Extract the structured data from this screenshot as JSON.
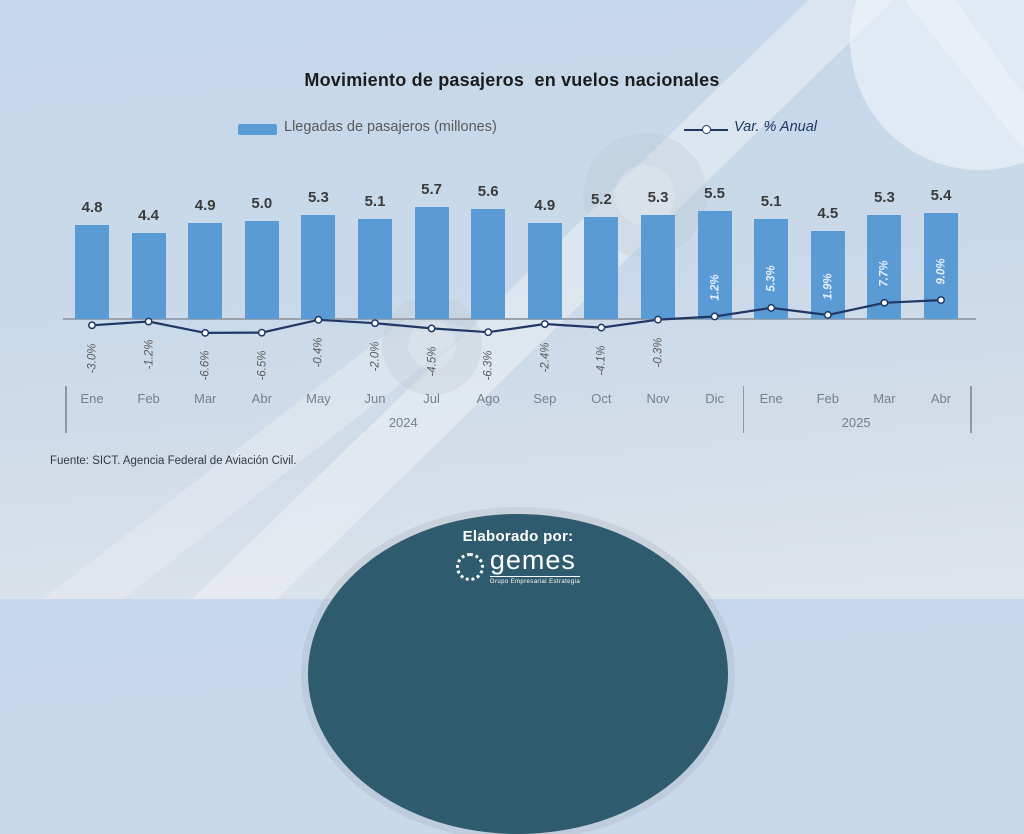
{
  "title": "Movimiento de pasajeros  en vuelos nacionales",
  "legend": {
    "bars_label": "Llegadas de pasajeros (millones)",
    "line_label": "Var. % Anual"
  },
  "source": "Fuente: SICT. Agencia Federal de Aviación Civil.",
  "footer": {
    "elaborado": "Elaborado por:",
    "logo_text": "gemes",
    "logo_tagline": "Grupo Empresarial Estrategia"
  },
  "colors": {
    "bar": "#5b9bd5",
    "line": "#1f3864",
    "marker_fill": "#ffffff",
    "axis": "#9aa3ad",
    "footer_ellipse": "#2e5b6d"
  },
  "chart_data": {
    "type": "bar",
    "subtype": "bar-with-line-overlay",
    "categories": [
      "Ene",
      "Feb",
      "Mar",
      "Abr",
      "May",
      "Jun",
      "Jul",
      "Ago",
      "Sep",
      "Oct",
      "Nov",
      "Dic",
      "Ene",
      "Feb",
      "Mar",
      "Abr"
    ],
    "year_groups": [
      {
        "label": "2024",
        "start": 0,
        "end": 11
      },
      {
        "label": "2025",
        "start": 12,
        "end": 15
      }
    ],
    "series": [
      {
        "name": "Llegadas de pasajeros (millones)",
        "type": "bar",
        "values": [
          4.8,
          4.4,
          4.9,
          5.0,
          5.3,
          5.1,
          5.7,
          5.6,
          4.9,
          5.2,
          5.3,
          5.5,
          5.1,
          4.5,
          5.3,
          5.4
        ],
        "labels": [
          "4.8",
          "4.4",
          "4.9",
          "5.0",
          "5.3",
          "5.1",
          "5.7",
          "5.6",
          "4.9",
          "5.2",
          "5.3",
          "5.5",
          "5.1",
          "4.5",
          "5.3",
          "5.4"
        ]
      },
      {
        "name": "Var. % Anual",
        "type": "line",
        "values": [
          -3.0,
          -1.2,
          -6.6,
          -6.5,
          -0.4,
          -2.0,
          -4.5,
          -6.3,
          -2.4,
          -4.1,
          -0.3,
          1.2,
          5.3,
          1.9,
          7.7,
          9.0
        ],
        "labels": [
          "-3.0%",
          "-1.2%",
          "-6.6%",
          "-6.5%",
          "-0.4%",
          "-2.0%",
          "-4.5%",
          "-6.3%",
          "-2.4%",
          "-4.1%",
          "-0.3%",
          "1.2%",
          "5.3%",
          "1.9%",
          "7.7%",
          "9.0%"
        ]
      }
    ],
    "ylim_bars": [
      0,
      6
    ],
    "grid": false,
    "legend_position": "top"
  }
}
